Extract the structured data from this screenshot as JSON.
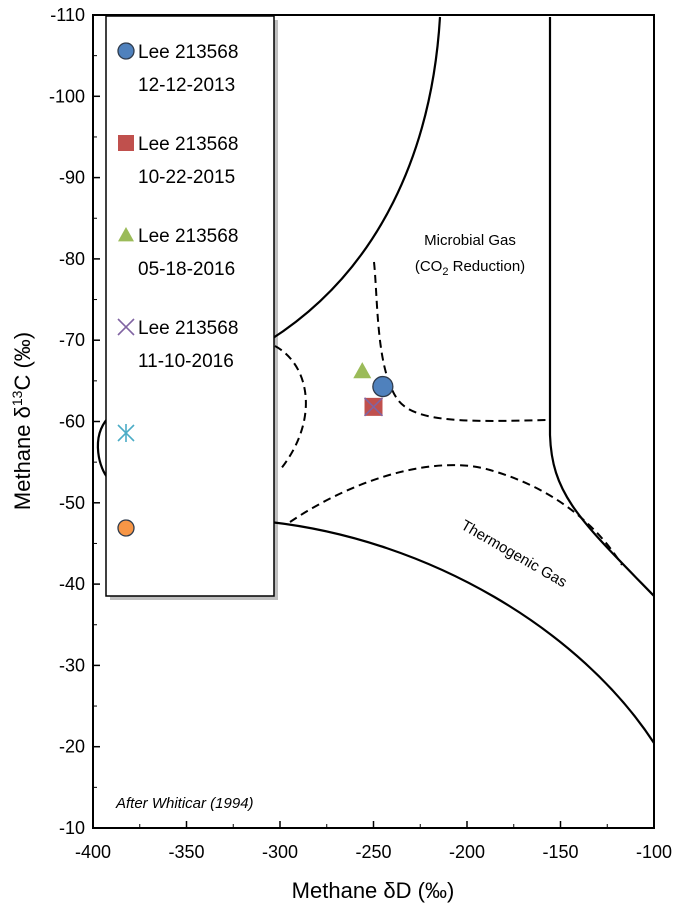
{
  "chart_data": {
    "type": "scatter",
    "xlabel": "Methane δD (‰)",
    "ylabel_prefix": "Methane δ",
    "ylabel_sup": "13",
    "ylabel_suffix": "C (‰)",
    "xlim": [
      -400,
      -100
    ],
    "ylim": [
      -110,
      -10
    ],
    "x_ticks": [
      -400,
      -350,
      -300,
      -250,
      -200,
      -150,
      -100
    ],
    "y_ticks": [
      -110,
      -100,
      -90,
      -80,
      -70,
      -60,
      -50,
      -40,
      -30,
      -20,
      -10
    ],
    "x_tick_labels": [
      "-400",
      "-350",
      "-300",
      "-250",
      "-200",
      "-150",
      "-100"
    ],
    "y_tick_labels": [
      "-110",
      "-100",
      "-90",
      "-80",
      "-70",
      "-60",
      "-50",
      "-40",
      "-30",
      "-20",
      "-10"
    ],
    "y_axis_reversed": true,
    "grid": false,
    "legend_placement": "left",
    "annotations": {
      "microbial_line1": "Microbial Gas",
      "microbial_line2_a": "(CO",
      "microbial_line2_sub": "2",
      "microbial_line2_b": " Reduction)",
      "thermogenic": "Thermogenic Gas",
      "source": "After Whiticar (1994)"
    },
    "series": [
      {
        "name": "Lee 213568",
        "date": "12-12-2013",
        "marker": "circle",
        "color": "#4F81BD",
        "x": -245,
        "y": -64.3
      },
      {
        "name": "Lee 213568",
        "date": "10-22-2015",
        "marker": "square",
        "color": "#C0504D",
        "x": -250,
        "y": -61.8
      },
      {
        "name": "Lee 213568",
        "date": "05-18-2016",
        "marker": "triangle",
        "color": "#9BBB59",
        "x": -256,
        "y": -66.2
      },
      {
        "name": "Lee 213568",
        "date": "11-10-2016",
        "marker": "x",
        "color": "#8064A2",
        "x": -250,
        "y": -61.8
      },
      {
        "name": "",
        "date": "",
        "marker": "asterisk",
        "color": "#4BACC6",
        "x": -382,
        "y": -58.3
      },
      {
        "name": "",
        "date": "",
        "marker": "circle",
        "color": "#F79646",
        "x": -382,
        "y": -46.5
      }
    ]
  }
}
